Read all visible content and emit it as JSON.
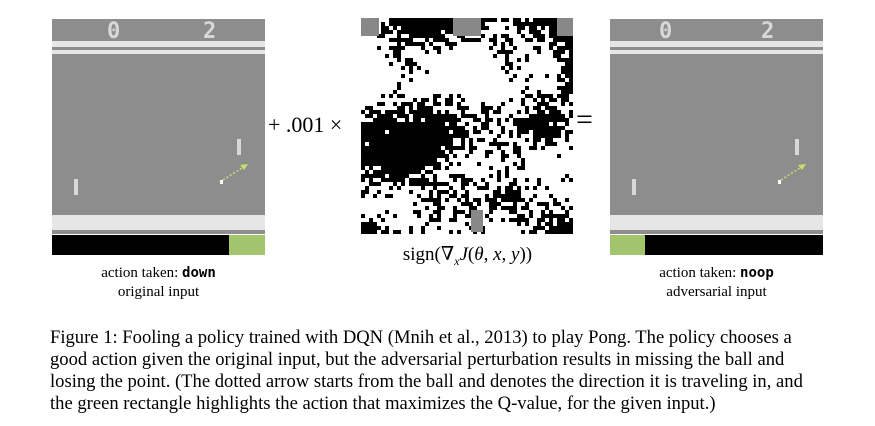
{
  "left_panel": {
    "score_left": "0",
    "score_right": "2",
    "action_prefix": "action taken: ",
    "action_value": "down",
    "label": "original input"
  },
  "right_panel": {
    "score_left": "0",
    "score_right": "2",
    "action_prefix": "action taken: ",
    "action_value": "noop",
    "label": "adversarial input"
  },
  "operators": {
    "plus_epsilon": "+ .001 ×",
    "equals": "="
  },
  "perturbation": {
    "label": "sign(∇ₓJ(θ, x, y))"
  },
  "colors": {
    "frame_gray": "#8d8d8d",
    "band_light": "#e6e6e6",
    "q_max_green": "#a1c46d",
    "arrow_green": "#c8e06e"
  },
  "caption": {
    "text": "Figure 1: Fooling a policy trained with DQN (Mnih et al., 2013) to play Pong. The policy chooses a good action given the original input, but the adversarial perturbation results in missing the ball and losing the point. (The dotted arrow starts from the ball and denotes the direction it is traveling in, and the green rectangle highlights the action that maximizes the Q-value, for the given input.)"
  }
}
